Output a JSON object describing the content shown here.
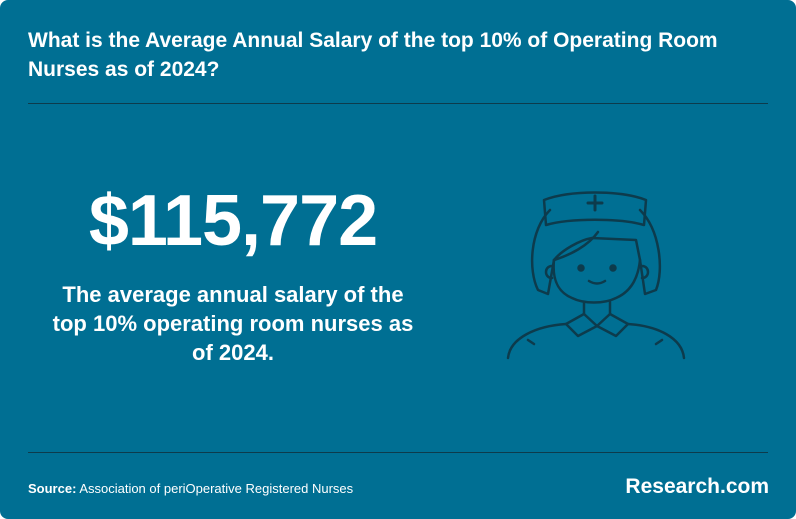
{
  "card": {
    "title": "What is the Average Annual Salary of the top 10% of Operating Room Nurses as of 2024?",
    "stat_value": "$115,772",
    "stat_description": "The average annual salary of the top 10% operating room nurses as of 2024."
  },
  "footer": {
    "source_label": "Source:",
    "source_text": "Association of periOperative Registered Nurses",
    "brand": "Research.com"
  },
  "illustration": {
    "icon": "nurse-icon"
  },
  "colors": {
    "background": "#006f93",
    "divider": "#0d3b4c",
    "icon_stroke": "#0d3b4c",
    "text": "#ffffff"
  }
}
